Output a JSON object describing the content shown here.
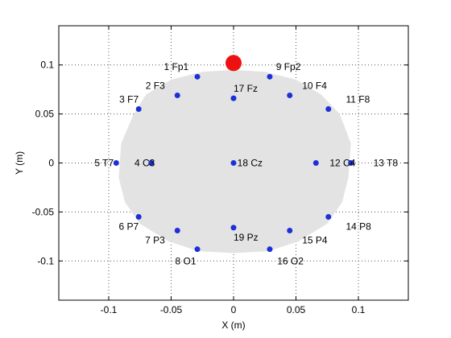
{
  "chart_data": {
    "type": "scatter",
    "title": "",
    "xlabel": "X (m)",
    "ylabel": "Y (m)",
    "xlim": [
      -0.14,
      0.14
    ],
    "ylim": [
      -0.14,
      0.14
    ],
    "grid": true,
    "x_ticks": [
      -0.1,
      -0.05,
      0,
      0.05,
      0.1
    ],
    "x_tick_labels": [
      "-0.1",
      "-0.05",
      "0",
      "0.05",
      "0.1"
    ],
    "y_ticks": [
      -0.1,
      -0.05,
      0,
      0.05,
      0.1
    ],
    "y_tick_labels": [
      "-0.1",
      "-0.05",
      "0",
      "0.05",
      "0.1"
    ],
    "head_outline": [
      [
        -0.09,
        0.02
      ],
      [
        -0.08,
        0.05
      ],
      [
        -0.07,
        0.07
      ],
      [
        -0.05,
        0.085
      ],
      [
        -0.025,
        0.093
      ],
      [
        0.0,
        0.095
      ],
      [
        0.025,
        0.093
      ],
      [
        0.05,
        0.085
      ],
      [
        0.07,
        0.07
      ],
      [
        0.085,
        0.05
      ],
      [
        0.094,
        0.02
      ],
      [
        0.092,
        -0.015
      ],
      [
        0.087,
        -0.04
      ],
      [
        0.075,
        -0.062
      ],
      [
        0.052,
        -0.08
      ],
      [
        0.028,
        -0.09
      ],
      [
        0.0,
        -0.092
      ],
      [
        -0.028,
        -0.09
      ],
      [
        -0.052,
        -0.08
      ],
      [
        -0.075,
        -0.062
      ],
      [
        -0.087,
        -0.04
      ],
      [
        -0.092,
        -0.015
      ]
    ],
    "head_color": "#e3e3e3",
    "electrode_color": "#1f2fd6",
    "nose_color": "#ee1111",
    "nose": {
      "x": 0.0,
      "y": 0.102
    },
    "electrodes": [
      {
        "label": "1 Fp1",
        "x": -0.029,
        "y": 0.088,
        "anchor": "end",
        "lx": -0.007,
        "ly": 0.01
      },
      {
        "label": "9 Fp2",
        "x": 0.029,
        "y": 0.088,
        "anchor": "start",
        "lx": 0.005,
        "ly": 0.01
      },
      {
        "label": "2 F3",
        "x": -0.045,
        "y": 0.069,
        "anchor": "end",
        "lx": -0.01,
        "ly": 0.01
      },
      {
        "label": "17 Fz",
        "x": 0.0,
        "y": 0.066,
        "anchor": "start",
        "lx": 0.0,
        "ly": 0.01
      },
      {
        "label": "10 F4",
        "x": 0.045,
        "y": 0.069,
        "anchor": "start",
        "lx": 0.01,
        "ly": 0.01
      },
      {
        "label": "3 F7",
        "x": -0.076,
        "y": 0.055,
        "anchor": "end",
        "lx": 0.0,
        "ly": 0.01
      },
      {
        "label": "11 F8",
        "x": 0.076,
        "y": 0.055,
        "anchor": "start",
        "lx": 0.014,
        "ly": 0.01
      },
      {
        "label": "5 T7",
        "x": -0.094,
        "y": 0.0,
        "anchor": "end",
        "lx": -0.002,
        "ly": 0.0
      },
      {
        "label": "4 C3",
        "x": -0.066,
        "y": 0.0,
        "anchor": "end",
        "lx": 0.003,
        "ly": 0.0
      },
      {
        "label": "18 Cz",
        "x": 0.0,
        "y": 0.0,
        "anchor": "start",
        "lx": 0.003,
        "ly": 0.0
      },
      {
        "label": "12 C4",
        "x": 0.066,
        "y": 0.0,
        "anchor": "start",
        "lx": 0.011,
        "ly": 0.0
      },
      {
        "label": "13 T8",
        "x": 0.094,
        "y": 0.0,
        "anchor": "start",
        "lx": 0.018,
        "ly": 0.0
      },
      {
        "label": "6 P7",
        "x": -0.076,
        "y": -0.055,
        "anchor": "end",
        "lx": 0.0,
        "ly": -0.01
      },
      {
        "label": "14 P8",
        "x": 0.076,
        "y": -0.055,
        "anchor": "start",
        "lx": 0.014,
        "ly": -0.01
      },
      {
        "label": "7 P3",
        "x": -0.045,
        "y": -0.069,
        "anchor": "end",
        "lx": -0.01,
        "ly": -0.01
      },
      {
        "label": "19 Pz",
        "x": 0.0,
        "y": -0.066,
        "anchor": "start",
        "lx": 0.0,
        "ly": -0.01
      },
      {
        "label": "15 P4",
        "x": 0.045,
        "y": -0.069,
        "anchor": "start",
        "lx": 0.01,
        "ly": -0.01
      },
      {
        "label": "8 O1",
        "x": -0.029,
        "y": -0.088,
        "anchor": "end",
        "lx": -0.001,
        "ly": -0.012
      },
      {
        "label": "16 O2",
        "x": 0.029,
        "y": -0.088,
        "anchor": "start",
        "lx": 0.006,
        "ly": -0.012
      }
    ]
  }
}
